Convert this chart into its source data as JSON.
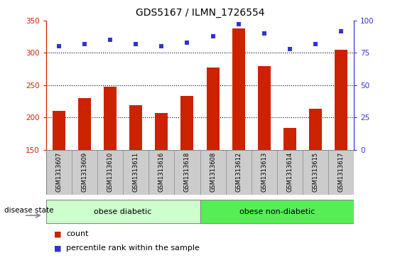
{
  "title": "GDS5167 / ILMN_1726554",
  "samples": [
    "GSM1313607",
    "GSM1313609",
    "GSM1313610",
    "GSM1313611",
    "GSM1313616",
    "GSM1313618",
    "GSM1313608",
    "GSM1313612",
    "GSM1313613",
    "GSM1313614",
    "GSM1313615",
    "GSM1313617"
  ],
  "counts": [
    210,
    230,
    248,
    219,
    207,
    233,
    277,
    338,
    279,
    184,
    213,
    305
  ],
  "percentiles": [
    80,
    82,
    85,
    82,
    80,
    83,
    88,
    97,
    90,
    78,
    82,
    92
  ],
  "group1_label": "obese diabetic",
  "group2_label": "obese non-diabetic",
  "group1_count": 6,
  "group2_count": 6,
  "ylim_left": [
    150,
    350
  ],
  "ylim_right": [
    0,
    100
  ],
  "yticks_left": [
    150,
    200,
    250,
    300,
    350
  ],
  "yticks_right": [
    0,
    25,
    50,
    75,
    100
  ],
  "bar_color": "#cc2200",
  "dot_color": "#3333cc",
  "group_bg_color1": "#ccffcc",
  "group_bg_color2": "#55ee55",
  "sample_bg_color": "#cccccc",
  "legend_count_color": "#cc2200",
  "legend_pct_color": "#3333cc",
  "disease_state_label": "disease state",
  "legend_count_label": "count",
  "legend_pct_label": "percentile rank within the sample",
  "grid_lines": [
    200,
    250,
    300
  ],
  "bar_width": 0.5
}
